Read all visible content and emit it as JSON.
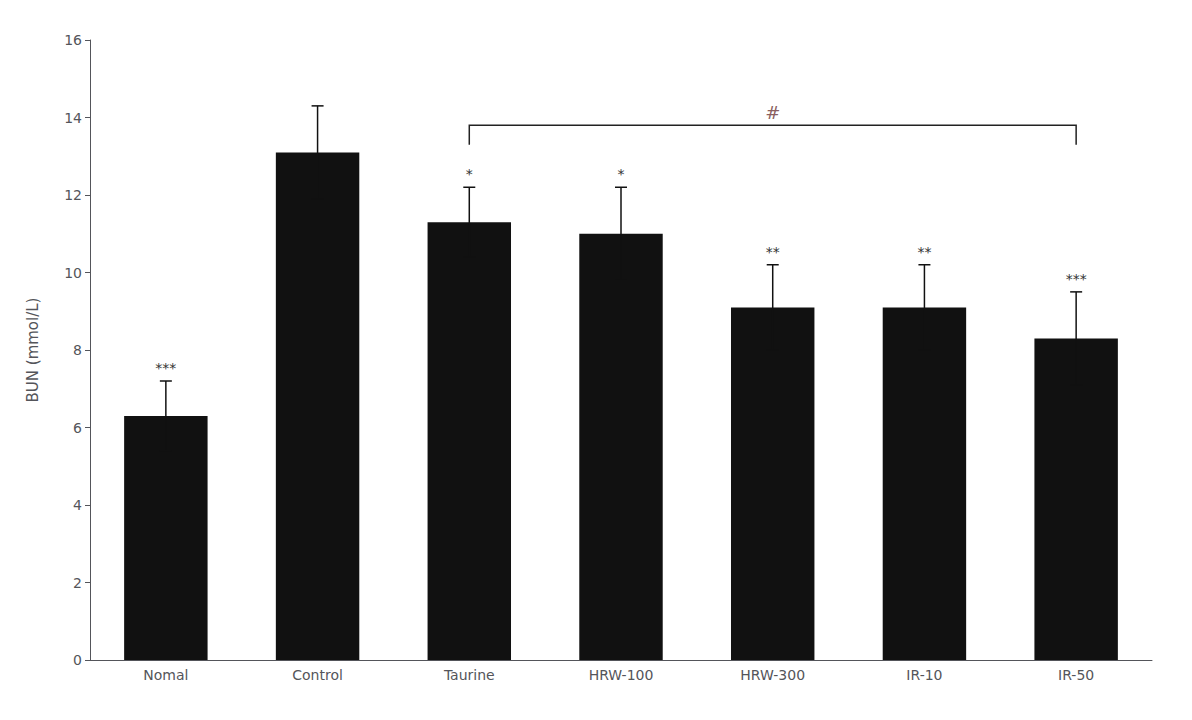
{
  "chart_data": {
    "type": "bar",
    "categories": [
      "Nomal",
      "Control",
      "Taurine",
      "HRW-100",
      "HRW-300",
      "IR-10",
      "IR-50"
    ],
    "values": [
      6.3,
      13.1,
      11.3,
      11.0,
      9.1,
      9.1,
      8.3
    ],
    "errors": [
      0.9,
      1.2,
      0.9,
      1.2,
      1.1,
      1.1,
      1.2
    ],
    "color": "#111111",
    "significance": [
      "***",
      null,
      "*",
      "*",
      "**",
      "**",
      "***"
    ],
    "significance_color": "#333333",
    "bracket": {
      "from": "Taurine",
      "to": "IR-50",
      "y": 13.8,
      "tick_len": 0.5,
      "label": "#",
      "color": "#222222",
      "label_color": "#8B6060"
    },
    "ylabel": "BUN (mmol/L)",
    "ylim": [
      0,
      16
    ],
    "yticks": [
      0,
      2,
      4,
      6,
      8,
      10,
      12,
      14,
      16
    ],
    "grid": false
  }
}
